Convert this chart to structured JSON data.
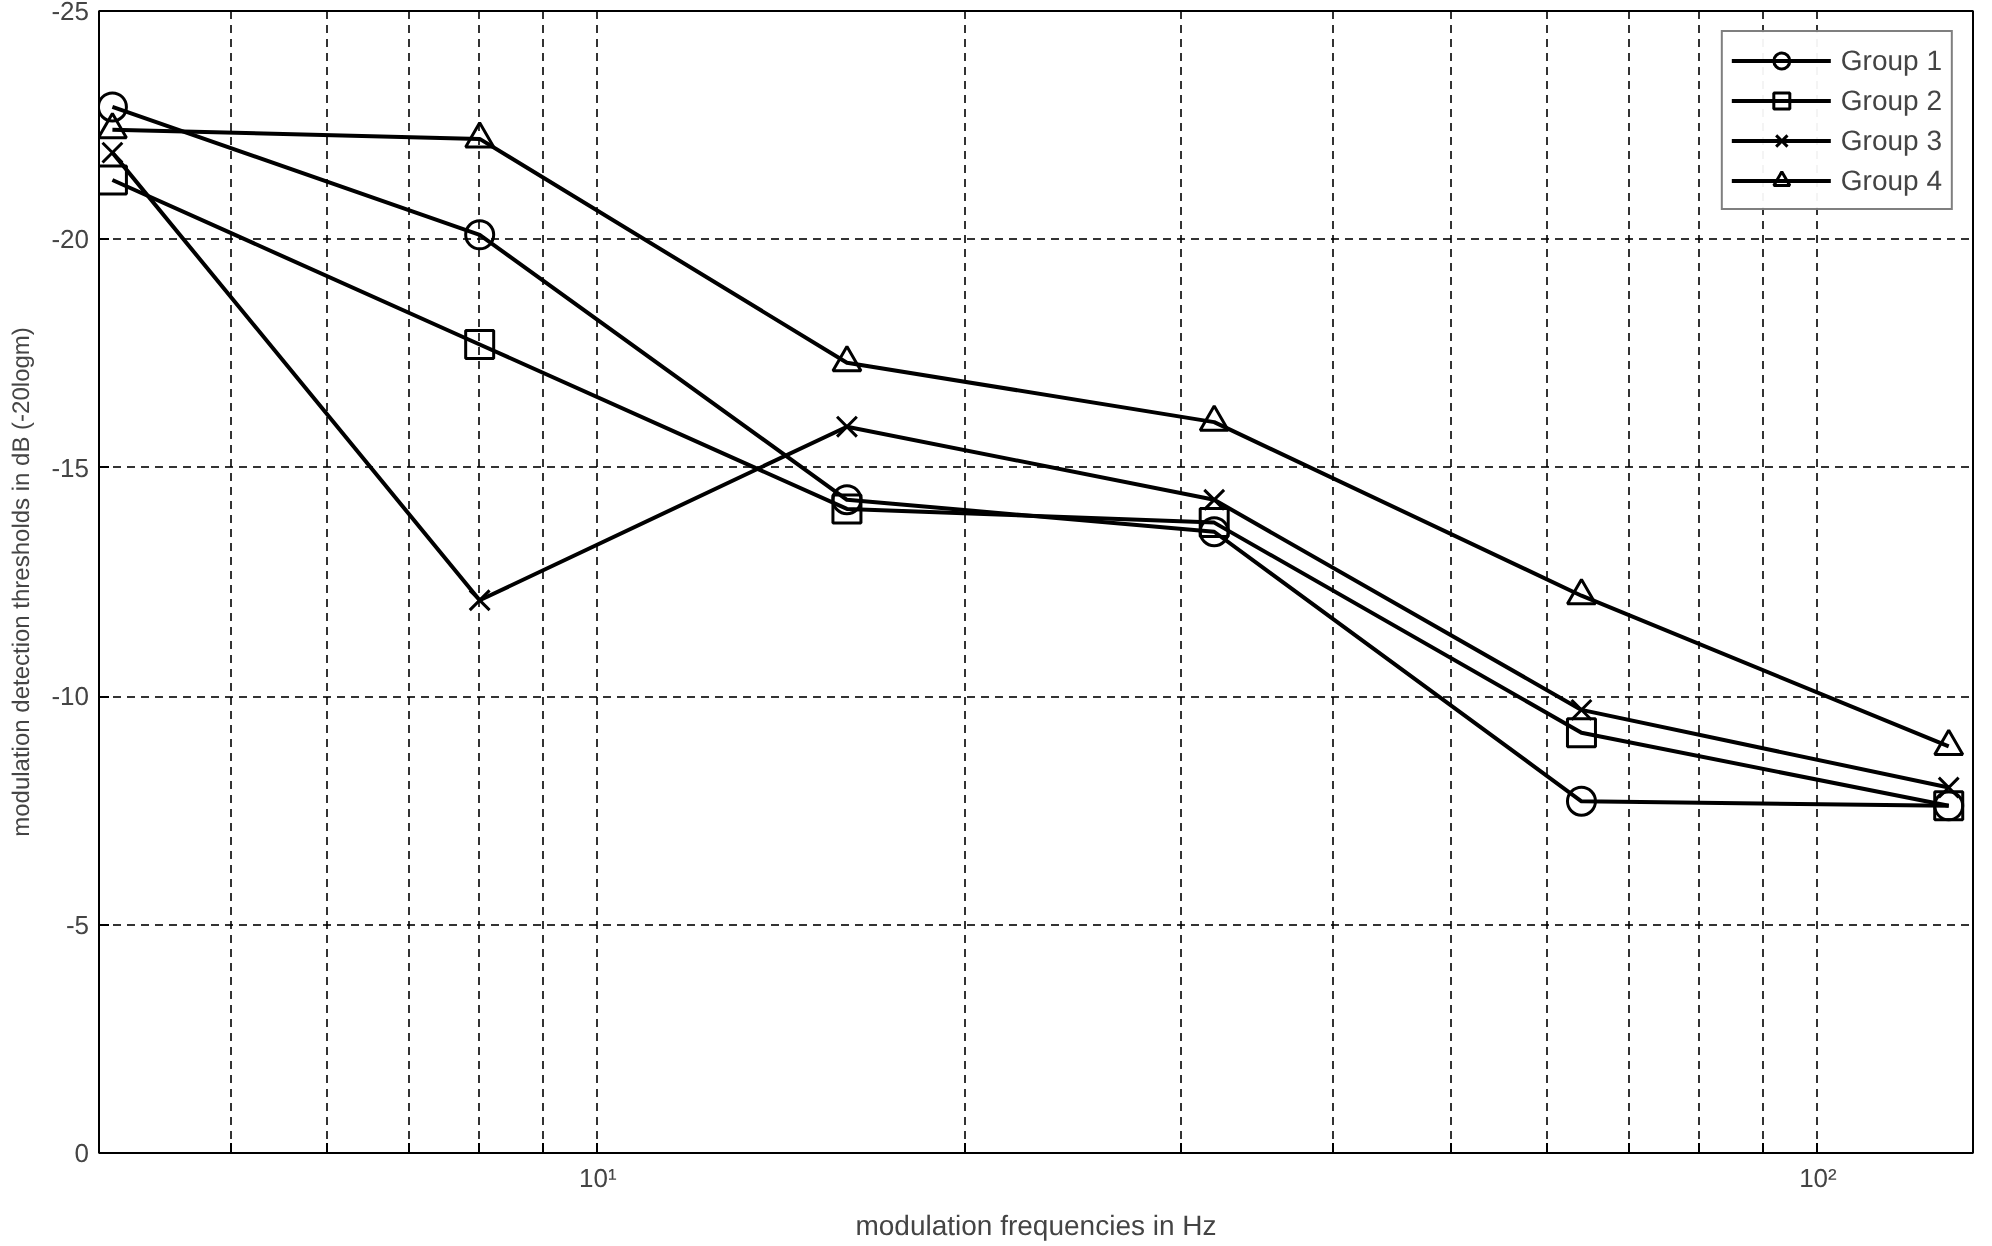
{
  "chart_data": {
    "type": "line",
    "xlabel": "modulation frequencies in Hz",
    "ylabel": "modulation detection thresholds in dB (-20logm)",
    "log": "x",
    "xlim": [
      3.9,
      134
    ],
    "xticks": [
      {
        "value": 5,
        "label": null
      },
      {
        "value": 6,
        "label": null
      },
      {
        "value": 7,
        "label": null
      },
      {
        "value": 8,
        "label": null
      },
      {
        "value": 9,
        "label": null
      },
      {
        "value": 10,
        "label": "10¹"
      },
      {
        "value": 20,
        "label": null
      },
      {
        "value": 30,
        "label": null
      },
      {
        "value": 40,
        "label": null
      },
      {
        "value": 50,
        "label": null
      },
      {
        "value": 60,
        "label": null
      },
      {
        "value": 70,
        "label": null
      },
      {
        "value": 80,
        "label": null
      },
      {
        "value": 90,
        "label": null
      },
      {
        "value": 100,
        "label": "10²"
      }
    ],
    "ylim": [
      0,
      -25
    ],
    "yticks": [
      0,
      -5,
      -10,
      -15,
      -20,
      -25
    ],
    "x": [
      4,
      8,
      16,
      32,
      64,
      128
    ],
    "series": [
      {
        "name": "Group 1",
        "color": "#000000",
        "marker": "circle",
        "values": [
          -22.9,
          -20.1,
          -14.3,
          -13.6,
          -7.7,
          -7.6
        ]
      },
      {
        "name": "Group 2",
        "color": "#000000",
        "marker": "square",
        "values": [
          -21.3,
          -17.7,
          -14.1,
          -13.8,
          -9.2,
          -7.6
        ]
      },
      {
        "name": "Group 3",
        "color": "#000000",
        "marker": "cross",
        "values": [
          -21.9,
          -12.1,
          -15.9,
          -14.3,
          -9.7,
          -8.0
        ]
      },
      {
        "name": "Group 4",
        "color": "#000000",
        "marker": "triangle",
        "values": [
          -22.4,
          -22.2,
          -17.3,
          -16.0,
          -12.2,
          -8.9
        ]
      }
    ],
    "grid": true,
    "legend": "top right",
    "line_style": "solid"
  }
}
